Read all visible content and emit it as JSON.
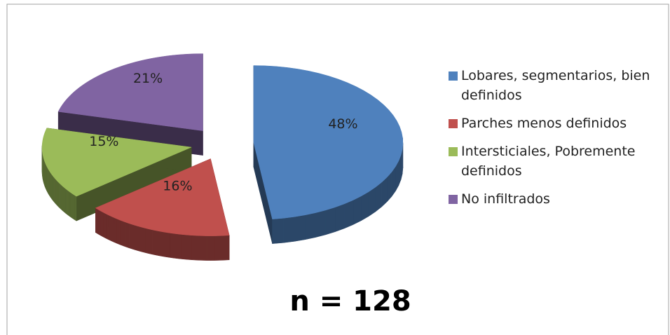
{
  "chart_data": {
    "type": "pie3d",
    "categories": [
      "Lobares, segmentarios, bien definidos",
      "Parches menos definidos",
      "Intersticiales, Pobremente definidos",
      "No infiltrados"
    ],
    "values": [
      48,
      16,
      15,
      21
    ],
    "value_labels": [
      "48%",
      "16%",
      "15%",
      "21%"
    ],
    "colors": [
      "#4f81bd",
      "#c0504d",
      "#9bbb59",
      "#8064a2"
    ],
    "annotation": "n = 128",
    "legend": "right"
  }
}
